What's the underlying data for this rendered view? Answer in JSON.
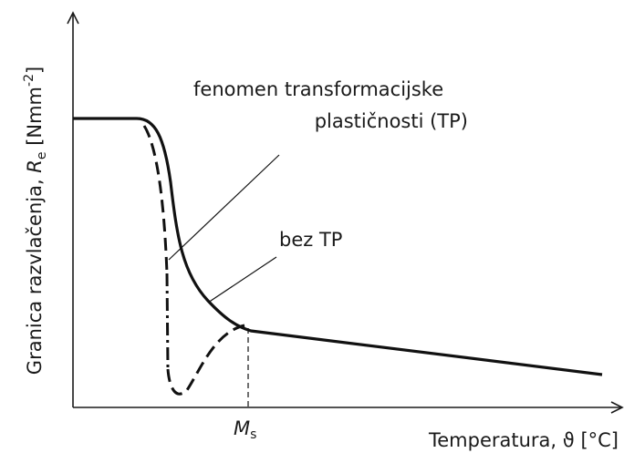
{
  "annotations": {
    "tp_line1": "fenomen transformacijske",
    "tp_line2": "plastičnosti (TP)",
    "no_tp": "bez TP",
    "ms_symbol": "M",
    "ms_subscript": "s"
  },
  "axes": {
    "y_label": {
      "text": "Granica razvlačenja, ",
      "symbol": "R",
      "subscript": "e",
      "unit_open": " [Nmm",
      "superscript": "-2",
      "unit_close": "]"
    },
    "x_label": "Temperatura, ϑ [°C]"
  }
}
